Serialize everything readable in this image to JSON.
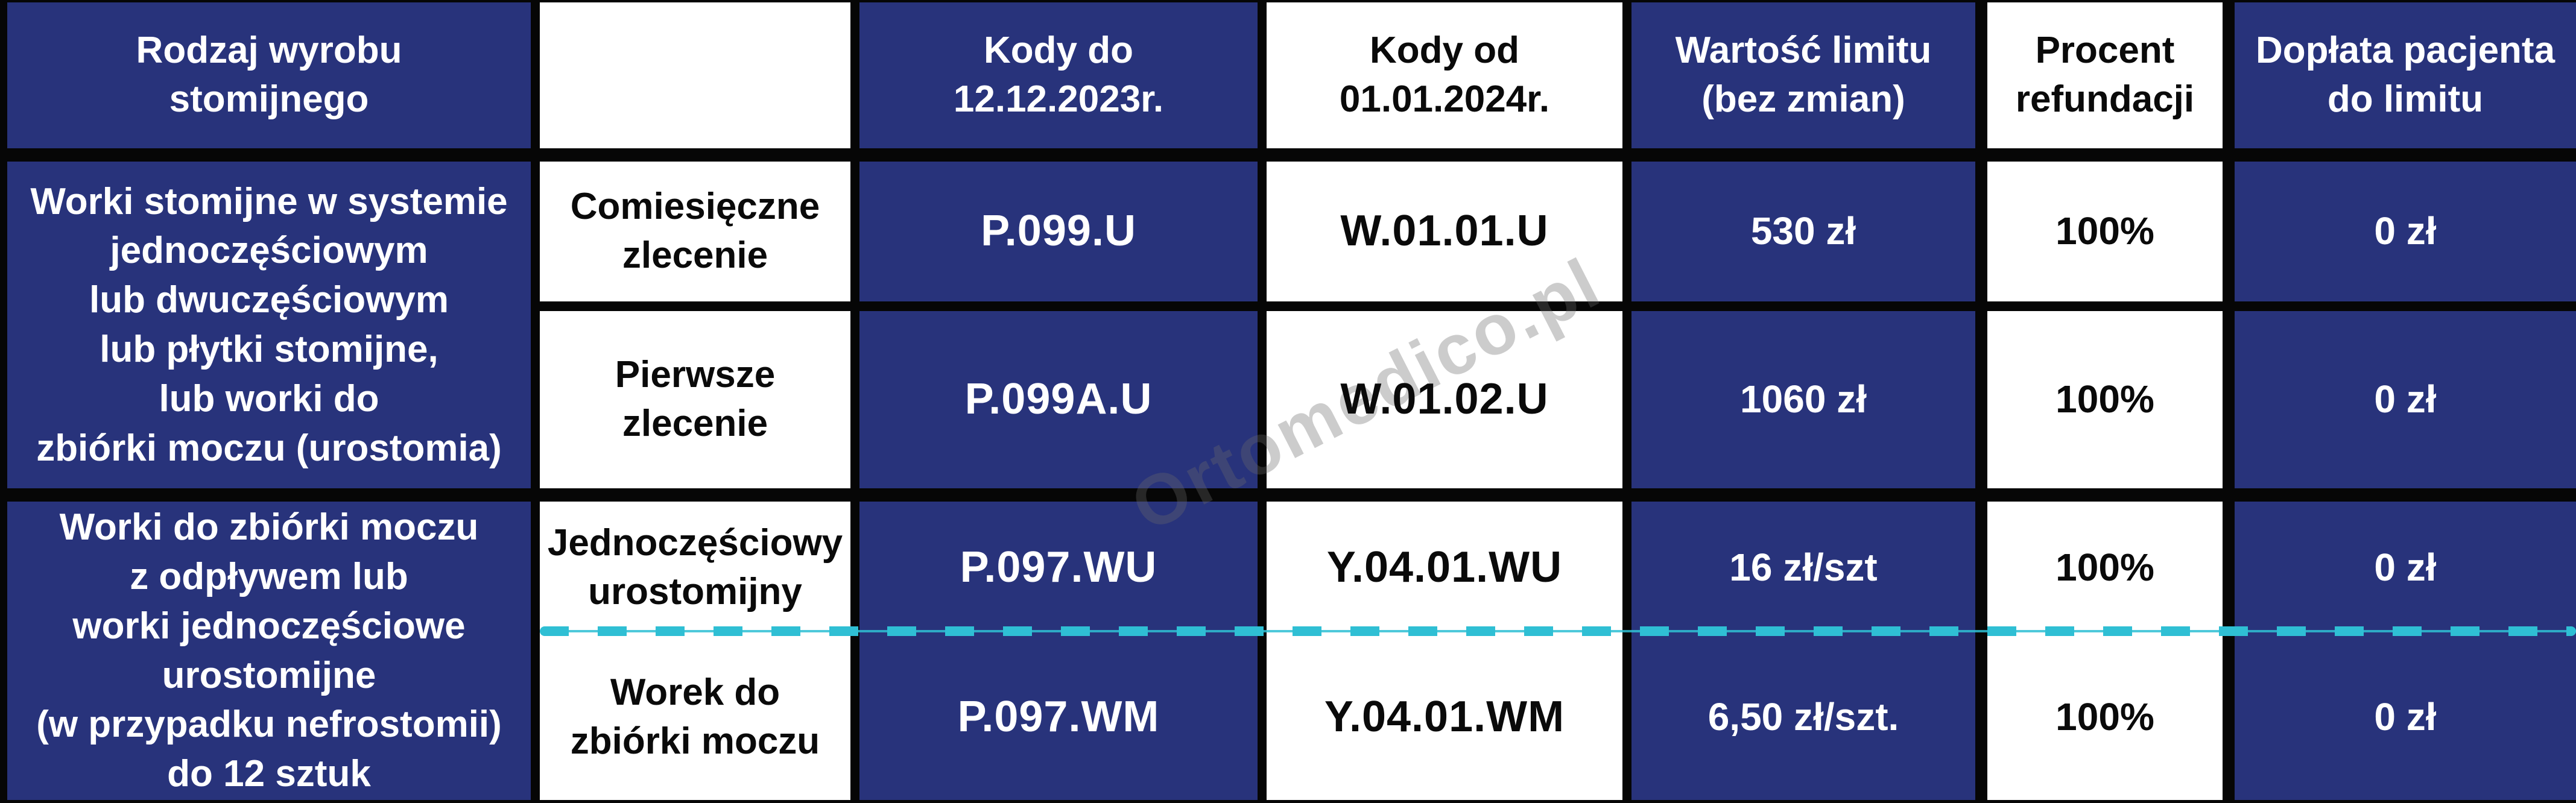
{
  "header": {
    "product_type": "Rodzaj wyrobu\nstomijnego",
    "order_type": "",
    "codes_until": "Kody do\n12.12.2023r.",
    "codes_from": "Kody od\n01.01.2024r.",
    "limit_value": "Wartość limitu\n(bez zmian)",
    "refund_percent": "Procent\nrefundacji",
    "patient_copay": "Dopłata pacjenta\ndo limitu"
  },
  "groups": [
    {
      "product": "Worki stomijne w systemie\njednoczęściowym\nlub dwuczęściowym\nlub płytki stomijne,\nlub worki do\nzbiórki moczu (urostomia)"
    },
    {
      "product": "Worki do zbiórki moczu\nz odpływem lub\nworki jednoczęściowe\nurostomijne\n(w przypadku nefrostomii)\ndo 12 sztuk"
    }
  ],
  "rows": [
    {
      "order": "Comiesięczne\nzlecenie",
      "code_old": "P.099.U",
      "code_new": "W.01.01.U",
      "limit": "530 zł",
      "percent": "100%",
      "copay": "0 zł"
    },
    {
      "order": "Pierwsze\nzlecenie",
      "code_old": "P.099A.U",
      "code_new": "W.01.02.U",
      "limit": "1060 zł",
      "percent": "100%",
      "copay": "0 zł"
    },
    {
      "order": "Jednoczęściowy\nurostomijny",
      "code_old": "P.097.WU",
      "code_new": "Y.04.01.WU",
      "limit": "16 zł/szt",
      "percent": "100%",
      "copay": "0 zł"
    },
    {
      "order": "Worek do\nzbiórki moczu",
      "code_old": "P.097.WM",
      "code_new": "Y.04.01.WM",
      "limit": "6,50 zł/szt.",
      "percent": "100%",
      "copay": "0 zł"
    }
  ],
  "watermark": "Ortomedico.pl",
  "colors": {
    "navy": "#28337b",
    "cyan": "#2fbfd4",
    "border": "#060606"
  }
}
